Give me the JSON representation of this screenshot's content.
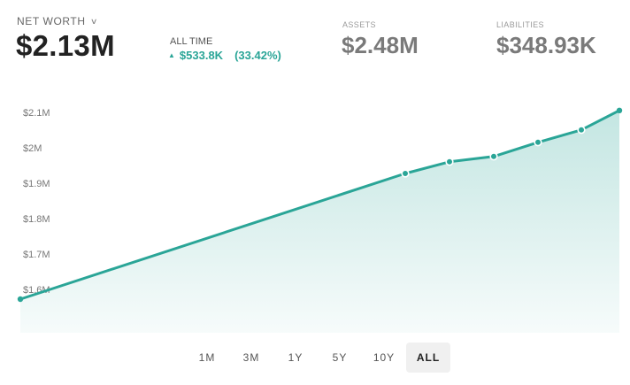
{
  "header": {
    "net_worth_label": "NET WORTH",
    "net_worth_dropdown_icon": "chevron-down-icon",
    "net_worth_value": "$2.13M",
    "period_label": "ALL TIME",
    "change_icon": "triangle-up-icon",
    "change_amount": "$533.8K",
    "change_percent": "(33.42%)",
    "assets_label": "ASSETS",
    "assets_value": "$2.48M",
    "liabilities_label": "LIABILITIES",
    "liabilities_value": "$348.93K"
  },
  "colors": {
    "accent": "#2aa597",
    "value_dark": "#222222",
    "value_gray": "#7a7a7a",
    "active_range_bg": "#f0f0f0"
  },
  "chart_data": {
    "type": "area",
    "title": "Net Worth",
    "xlabel": "",
    "ylabel": "",
    "y_tick_labels": [
      "$2.1M",
      "$2M",
      "$1.9M",
      "$1.8M",
      "$1.7M",
      "$1.6M"
    ],
    "y_ticks": [
      2.1,
      2.0,
      1.9,
      1.8,
      1.7,
      1.6
    ],
    "ylim": [
      1.55,
      2.12
    ],
    "grid": false,
    "legend": "none",
    "series": [
      {
        "name": "Net Worth ($M)",
        "x_index": [
          0,
          1,
          2,
          3,
          4,
          5,
          6
        ],
        "values": [
          1.575,
          1.93,
          1.963,
          1.978,
          2.018,
          2.053,
          2.108
        ]
      }
    ]
  },
  "ranges": {
    "options": [
      "1M",
      "3M",
      "1Y",
      "5Y",
      "10Y",
      "ALL"
    ],
    "selected": "ALL"
  }
}
